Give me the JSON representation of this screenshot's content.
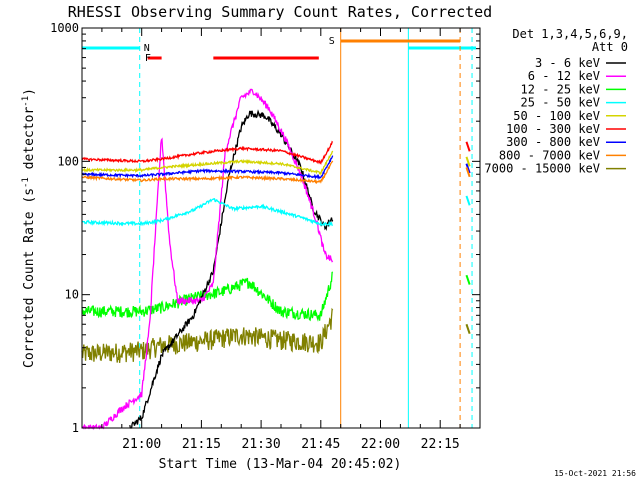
{
  "chart_data": {
    "type": "line",
    "title": "RHESSI Observing Summary Count Rates, Corrected",
    "xlabel": "Start Time (13-Mar-04 20:45:02)",
    "ylabel_main": "Corrected Count Rate (s",
    "ylabel_sup": "-1",
    "ylabel_mid": " detector",
    "ylabel_sup2": "-1",
    "ylabel_end": ")",
    "y_scale": "log",
    "ylim": [
      1,
      1000
    ],
    "xlim_minutes": [
      0,
      100
    ],
    "x_ticks": [
      {
        "m": 15,
        "label": "21:00"
      },
      {
        "m": 30,
        "label": "21:15"
      },
      {
        "m": 45,
        "label": "21:30"
      },
      {
        "m": 60,
        "label": "21:45"
      },
      {
        "m": 75,
        "label": "22:00"
      },
      {
        "m": 90,
        "label": "22:15"
      }
    ],
    "y_ticks": [
      {
        "v": 1,
        "label": "1"
      },
      {
        "v": 10,
        "label": "10"
      },
      {
        "v": 100,
        "label": "100"
      },
      {
        "v": 1000,
        "label": "1000"
      }
    ],
    "legend_header": [
      "Det 1,3,4,5,6,9,",
      "Att 0"
    ],
    "legend_position": "right",
    "series": [
      {
        "name": "3 - 6 keV",
        "color": "#000000"
      },
      {
        "name": "6 - 12 keV",
        "color": "#ff00ff"
      },
      {
        "name": "12 - 25 keV",
        "color": "#00ff00"
      },
      {
        "name": "25 - 50 keV",
        "color": "#00ffff"
      },
      {
        "name": "50 - 100 keV",
        "color": "#d4d400"
      },
      {
        "name": "100 - 300 keV",
        "color": "#ff0000"
      },
      {
        "name": "300 - 800 keV",
        "color": "#0000ff"
      },
      {
        "name": "800 - 7000 keV",
        "color": "#ff8000"
      },
      {
        "name": "7000 - 15000 keV",
        "color": "#808000"
      }
    ],
    "flag_labels": {
      "night": "N",
      "flare": "F",
      "saa": "S"
    },
    "footer_date": "15-Oct-2021 21:56"
  }
}
